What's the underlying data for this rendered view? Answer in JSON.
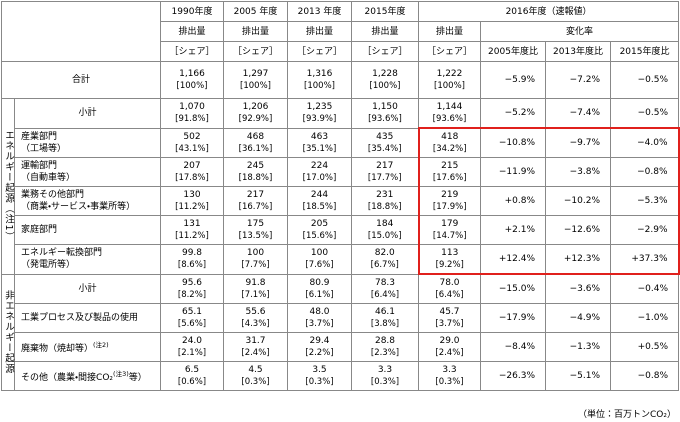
{
  "header": {
    "years": [
      "1990年度",
      "2005 年度",
      "2013 年度",
      "2015年度"
    ],
    "latest": "2016年度（速報値）",
    "emission": "排出量",
    "share": "［シェア］",
    "change": "変化率",
    "change_cols": [
      "2005年度比",
      "2013年度比",
      "2015年度比"
    ]
  },
  "table": {
    "total": {
      "label": "合計",
      "values": [
        "1,166",
        "1,297",
        "1,316",
        "1,228",
        "1,222"
      ],
      "shares": [
        "[100%]",
        "[100%]",
        "[100%]",
        "[100%]",
        "[100%]"
      ],
      "changes": [
        "−5.9%",
        "−7.2%",
        "−0.5%"
      ]
    },
    "groups": [
      {
        "label": "エネルギー起源（注1）",
        "rows": [
          {
            "label": "小計",
            "values": [
              "1,070",
              "1,206",
              "1,235",
              "1,150",
              "1,144"
            ],
            "shares": [
              "[91.8%]",
              "[92.9%]",
              "[93.9%]",
              "[93.6%]",
              "[93.6%]"
            ],
            "changes": [
              "−5.2%",
              "−7.4%",
              "−0.5%"
            ]
          },
          {
            "label": "産業部門",
            "sub": "（工場等）",
            "values": [
              "502",
              "468",
              "463",
              "435",
              "418"
            ],
            "shares": [
              "[43.1%]",
              "[36.1%]",
              "[35.1%]",
              "[35.4%]",
              "[34.2%]"
            ],
            "changes": [
              "−10.8%",
              "−9.7%",
              "−4.0%"
            ]
          },
          {
            "label": "運輸部門",
            "sub": "（自動車等）",
            "values": [
              "207",
              "245",
              "224",
              "217",
              "215"
            ],
            "shares": [
              "[17.8%]",
              "[18.8%]",
              "[17.0%]",
              "[17.7%]",
              "[17.6%]"
            ],
            "changes": [
              "−11.9%",
              "−3.8%",
              "−0.8%"
            ]
          },
          {
            "label": "業務その他部門",
            "sub": "（商業・サービス・事業所等）",
            "values": [
              "130",
              "217",
              "244",
              "231",
              "219"
            ],
            "shares": [
              "[11.2%]",
              "[16.7%]",
              "[18.5%]",
              "[18.8%]",
              "[17.9%]"
            ],
            "changes": [
              "+0.8%",
              "−10.2%",
              "−5.3%"
            ]
          },
          {
            "label": "家庭部門",
            "values": [
              "131",
              "175",
              "205",
              "184",
              "179"
            ],
            "shares": [
              "[11.2%]",
              "[13.5%]",
              "[15.6%]",
              "[15.0%]",
              "[14.7%]"
            ],
            "changes": [
              "+2.1%",
              "−12.6%",
              "−2.9%"
            ]
          },
          {
            "label": "エネルギー転換部門",
            "sub": "（発電所等）",
            "values": [
              "99.8",
              "100",
              "100",
              "82.0",
              "113"
            ],
            "shares": [
              "[8.6%]",
              "[7.7%]",
              "[7.6%]",
              "[6.7%]",
              "[9.2%]"
            ],
            "changes": [
              "+12.4%",
              "+12.3%",
              "+37.3%"
            ]
          }
        ]
      },
      {
        "label": "非エネルギー起源",
        "rows": [
          {
            "label": "小計",
            "values": [
              "95.6",
              "91.8",
              "80.9",
              "78.3",
              "78.0"
            ],
            "shares": [
              "[8.2%]",
              "[7.1%]",
              "[6.1%]",
              "[6.4%]",
              "[6.4%]"
            ],
            "changes": [
              "−15.0%",
              "−3.6%",
              "−0.4%"
            ]
          },
          {
            "label": "工業プロセス及び製品の使用",
            "values": [
              "65.1",
              "55.6",
              "48.0",
              "46.1",
              "45.7"
            ],
            "shares": [
              "[5.6%]",
              "[4.3%]",
              "[3.7%]",
              "[3.8%]",
              "[3.7%]"
            ],
            "changes": [
              "−17.9%",
              "−4.9%",
              "−1.0%"
            ]
          },
          {
            "label": "廃棄物（焼却等）",
            "note": "(注2)",
            "values": [
              "24.0",
              "31.7",
              "29.4",
              "28.8",
              "29.0"
            ],
            "shares": [
              "[2.1%]",
              "[2.4%]",
              "[2.2%]",
              "[2.3%]",
              "[2.4%]"
            ],
            "changes": [
              "−8.4%",
              "−1.3%",
              "+0.5%"
            ]
          },
          {
            "label": "その他（農業・間接CO₂",
            "note": "(注3)",
            "tail": "等）",
            "values": [
              "6.5",
              "4.5",
              "3.5",
              "3.3",
              "3.3"
            ],
            "shares": [
              "[0.6%]",
              "[0.3%]",
              "[0.3%]",
              "[0.3%]",
              "[0.3%]"
            ],
            "changes": [
              "−26.3%",
              "−5.1%",
              "−0.8%"
            ]
          }
        ]
      }
    ]
  },
  "unit": "（単位：百万トンCO₂）"
}
